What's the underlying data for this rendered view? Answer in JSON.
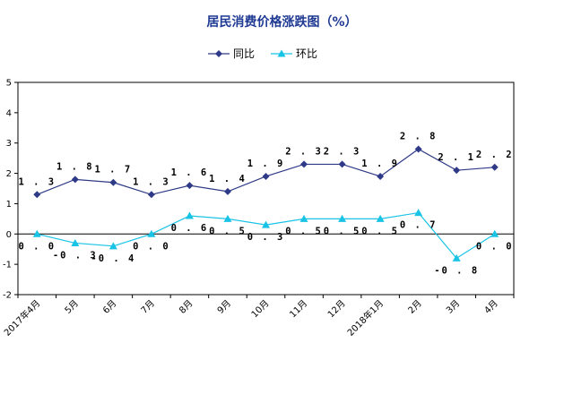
{
  "chart_data": {
    "type": "line",
    "title": "居民消费价格涨跌图（%）",
    "categories": [
      "2017年4月",
      "5月",
      "6月",
      "7月",
      "8月",
      "9月",
      "10月",
      "11月",
      "12月",
      "2018年1月",
      "2月",
      "3月",
      "4月"
    ],
    "series": [
      {
        "name": "同比",
        "values": [
          1.3,
          1.8,
          1.7,
          1.3,
          1.6,
          1.4,
          1.9,
          2.3,
          2.3,
          1.9,
          2.8,
          2.1,
          2.2
        ],
        "labels": [
          "1.3",
          "1.8",
          "1.7",
          "1.3",
          "1.6",
          "1.4",
          "1.9",
          "2.3",
          "2.3",
          "1.9",
          "2.8",
          "2.1",
          "2.2"
        ],
        "color": "#2e3a87",
        "marker": "diamond"
      },
      {
        "name": "环比",
        "values": [
          0.0,
          -0.3,
          -0.4,
          0.0,
          0.6,
          0.5,
          0.3,
          0.5,
          0.5,
          0.5,
          0.7,
          -0.8,
          0.0
        ],
        "labels": [
          "0.0",
          "-0.3",
          "-0.4",
          "0.0",
          "0.6",
          "0.5",
          "0.3",
          "0.5",
          "0.5",
          "0.5",
          "0.7",
          "-0.8",
          "0.0"
        ],
        "color": "#19c3e6",
        "marker": "triangle"
      }
    ],
    "ylim": [
      -2,
      5
    ],
    "yticks": [
      "-2",
      "-1",
      "0",
      "1",
      "2",
      "3",
      "4",
      "5"
    ],
    "xlabel": "",
    "ylabel": "",
    "grid": false,
    "legend_position": "top-center"
  }
}
